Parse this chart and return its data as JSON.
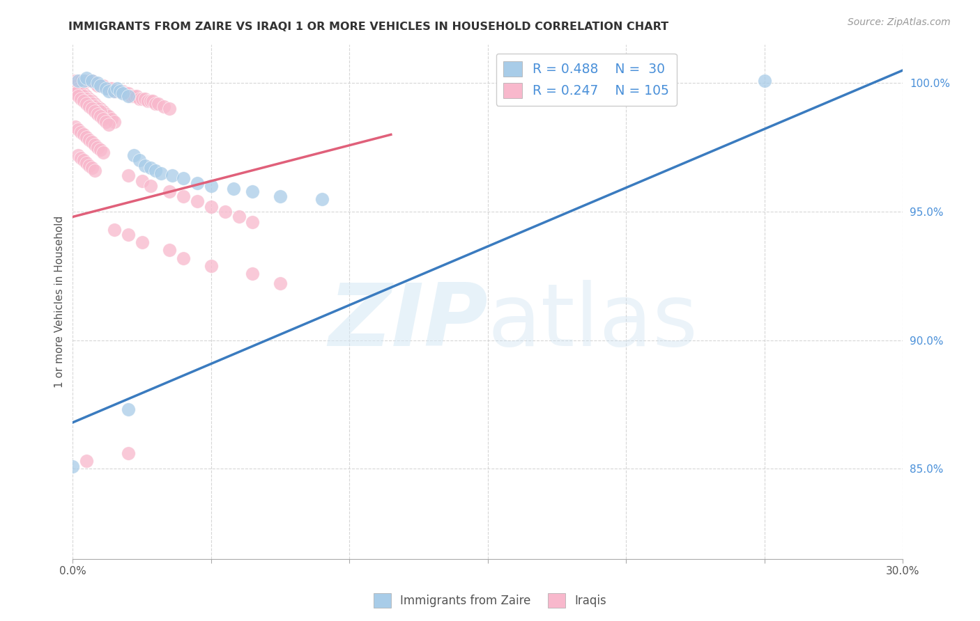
{
  "title": "IMMIGRANTS FROM ZAIRE VS IRAQI 1 OR MORE VEHICLES IN HOUSEHOLD CORRELATION CHART",
  "source": "Source: ZipAtlas.com",
  "ylabel": "1 or more Vehicles in Household",
  "ytick_vals": [
    0.85,
    0.9,
    0.95,
    1.0
  ],
  "ytick_labels": [
    "85.0%",
    "90.0%",
    "95.0%",
    "100.0%"
  ],
  "xlim": [
    0.0,
    0.3
  ],
  "ylim": [
    0.815,
    1.015
  ],
  "legend_blue_R": "0.488",
  "legend_blue_N": "30",
  "legend_pink_R": "0.247",
  "legend_pink_N": "105",
  "blue_fill_color": "#a8cce8",
  "pink_fill_color": "#f8b8cc",
  "blue_line_color": "#3a7bbf",
  "pink_line_color": "#e0607a",
  "blue_line_x0": 0.0,
  "blue_line_y0": 0.868,
  "blue_line_x1": 0.3,
  "blue_line_y1": 1.005,
  "pink_line_x0": 0.0,
  "pink_line_y0": 0.948,
  "pink_line_x1": 0.115,
  "pink_line_y1": 0.98,
  "blue_pts": [
    [
      0.002,
      1.001
    ],
    [
      0.004,
      1.001
    ],
    [
      0.005,
      1.002
    ],
    [
      0.007,
      1.001
    ],
    [
      0.009,
      1.0
    ],
    [
      0.01,
      0.999
    ],
    [
      0.012,
      0.998
    ],
    [
      0.013,
      0.997
    ],
    [
      0.015,
      0.997
    ],
    [
      0.016,
      0.998
    ],
    [
      0.017,
      0.997
    ],
    [
      0.018,
      0.996
    ],
    [
      0.02,
      0.995
    ],
    [
      0.022,
      0.972
    ],
    [
      0.024,
      0.97
    ],
    [
      0.026,
      0.968
    ],
    [
      0.028,
      0.967
    ],
    [
      0.03,
      0.966
    ],
    [
      0.032,
      0.965
    ],
    [
      0.036,
      0.964
    ],
    [
      0.04,
      0.963
    ],
    [
      0.045,
      0.961
    ],
    [
      0.05,
      0.96
    ],
    [
      0.058,
      0.959
    ],
    [
      0.065,
      0.958
    ],
    [
      0.075,
      0.956
    ],
    [
      0.09,
      0.955
    ],
    [
      0.25,
      1.001
    ],
    [
      0.0,
      0.851
    ],
    [
      0.02,
      0.873
    ]
  ],
  "pink_pts": [
    [
      0.001,
      1.001
    ],
    [
      0.003,
      1.001
    ],
    [
      0.005,
      1.001
    ],
    [
      0.006,
      1.001
    ],
    [
      0.007,
      1.001
    ],
    [
      0.008,
      1.0
    ],
    [
      0.009,
      0.999
    ],
    [
      0.01,
      0.999
    ],
    [
      0.011,
      0.999
    ],
    [
      0.013,
      0.998
    ],
    [
      0.014,
      0.998
    ],
    [
      0.015,
      0.997
    ],
    [
      0.016,
      0.997
    ],
    [
      0.017,
      0.997
    ],
    [
      0.018,
      0.997
    ],
    [
      0.019,
      0.996
    ],
    [
      0.02,
      0.996
    ],
    [
      0.021,
      0.995
    ],
    [
      0.022,
      0.995
    ],
    [
      0.023,
      0.995
    ],
    [
      0.024,
      0.994
    ],
    [
      0.025,
      0.994
    ],
    [
      0.026,
      0.994
    ],
    [
      0.027,
      0.993
    ],
    [
      0.028,
      0.993
    ],
    [
      0.029,
      0.993
    ],
    [
      0.03,
      0.992
    ],
    [
      0.031,
      0.992
    ],
    [
      0.033,
      0.991
    ],
    [
      0.035,
      0.99
    ],
    [
      0.001,
      0.999
    ],
    [
      0.002,
      0.998
    ],
    [
      0.003,
      0.997
    ],
    [
      0.004,
      0.996
    ],
    [
      0.005,
      0.995
    ],
    [
      0.006,
      0.994
    ],
    [
      0.007,
      0.993
    ],
    [
      0.008,
      0.992
    ],
    [
      0.009,
      0.991
    ],
    [
      0.01,
      0.99
    ],
    [
      0.011,
      0.989
    ],
    [
      0.012,
      0.988
    ],
    [
      0.013,
      0.987
    ],
    [
      0.014,
      0.986
    ],
    [
      0.015,
      0.985
    ],
    [
      0.002,
      0.997
    ],
    [
      0.003,
      0.996
    ],
    [
      0.004,
      0.995
    ],
    [
      0.005,
      0.994
    ],
    [
      0.006,
      0.993
    ],
    [
      0.007,
      0.992
    ],
    [
      0.008,
      0.991
    ],
    [
      0.009,
      0.99
    ],
    [
      0.01,
      0.989
    ],
    [
      0.001,
      0.996
    ],
    [
      0.002,
      0.995
    ],
    [
      0.003,
      0.994
    ],
    [
      0.004,
      0.993
    ],
    [
      0.005,
      0.992
    ],
    [
      0.006,
      0.991
    ],
    [
      0.007,
      0.99
    ],
    [
      0.008,
      0.989
    ],
    [
      0.009,
      0.988
    ],
    [
      0.01,
      0.987
    ],
    [
      0.011,
      0.986
    ],
    [
      0.012,
      0.985
    ],
    [
      0.013,
      0.984
    ],
    [
      0.001,
      0.983
    ],
    [
      0.002,
      0.982
    ],
    [
      0.003,
      0.981
    ],
    [
      0.004,
      0.98
    ],
    [
      0.005,
      0.979
    ],
    [
      0.006,
      0.978
    ],
    [
      0.007,
      0.977
    ],
    [
      0.008,
      0.976
    ],
    [
      0.009,
      0.975
    ],
    [
      0.01,
      0.974
    ],
    [
      0.011,
      0.973
    ],
    [
      0.002,
      0.972
    ],
    [
      0.003,
      0.971
    ],
    [
      0.004,
      0.97
    ],
    [
      0.005,
      0.969
    ],
    [
      0.006,
      0.968
    ],
    [
      0.007,
      0.967
    ],
    [
      0.008,
      0.966
    ],
    [
      0.02,
      0.964
    ],
    [
      0.025,
      0.962
    ],
    [
      0.028,
      0.96
    ],
    [
      0.035,
      0.958
    ],
    [
      0.04,
      0.956
    ],
    [
      0.045,
      0.954
    ],
    [
      0.05,
      0.952
    ],
    [
      0.055,
      0.95
    ],
    [
      0.06,
      0.948
    ],
    [
      0.065,
      0.946
    ],
    [
      0.015,
      0.943
    ],
    [
      0.02,
      0.941
    ],
    [
      0.025,
      0.938
    ],
    [
      0.035,
      0.935
    ],
    [
      0.04,
      0.932
    ],
    [
      0.05,
      0.929
    ],
    [
      0.065,
      0.926
    ],
    [
      0.075,
      0.922
    ],
    [
      0.005,
      0.853
    ],
    [
      0.02,
      0.856
    ]
  ]
}
